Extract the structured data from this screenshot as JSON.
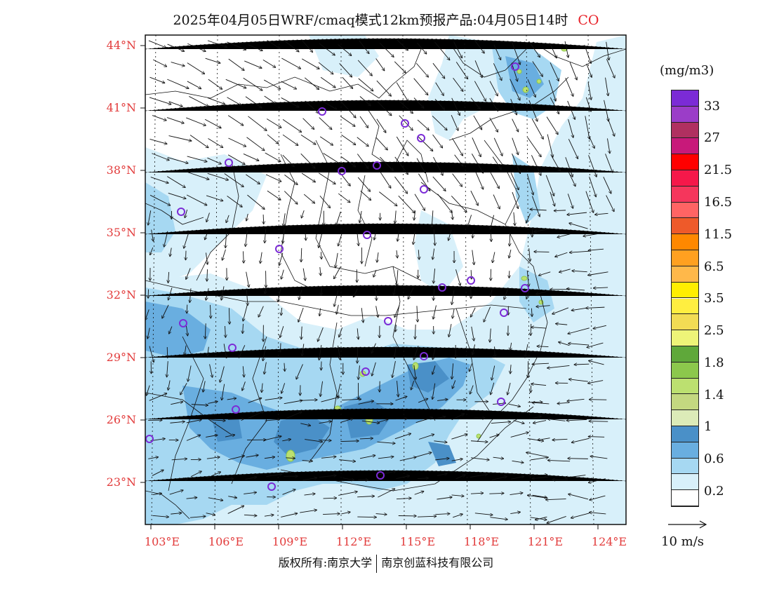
{
  "title": "2025年04月05日WRF/cmaq模式12km预报产品:04月05日14时",
  "species": "CO",
  "unit": "(mg/m3)",
  "lat_ticks": [
    "44°N",
    "41°N",
    "38°N",
    "35°N",
    "32°N",
    "29°N",
    "26°N",
    "23°N"
  ],
  "lon_ticks": [
    "103°E",
    "106°E",
    "109°E",
    "112°E",
    "115°E",
    "118°E",
    "121°E",
    "124°E"
  ],
  "legend": {
    "labels": [
      "33",
      "27",
      "21.5",
      "16.5",
      "11.5",
      "6.5",
      "3.5",
      "2.5",
      "1.8",
      "1.4",
      "1",
      "0.6",
      "0.2"
    ],
    "colors": [
      "#7b2bd6",
      "#9b3dc8",
      "#b03060",
      "#c8197a",
      "#ff0000",
      "#f5184a",
      "#f5365c",
      "#ff6464",
      "#ee5a2a",
      "#ff8800",
      "#ffa020",
      "#ffb84a",
      "#ffee00",
      "#ffee40",
      "#f2dc54",
      "#eef478",
      "#5fa83a",
      "#8cc84c",
      "#bce070",
      "#c4d880",
      "#dcebb8",
      "#4a90c8",
      "#69aee0",
      "#a6d8f2",
      "#d8f0fa",
      "#ffffff"
    ]
  },
  "wind_reference": "10 m/s",
  "copyright": {
    "left": "版权所有:南京大学",
    "right": "南京创蓝科技有限公司"
  }
}
